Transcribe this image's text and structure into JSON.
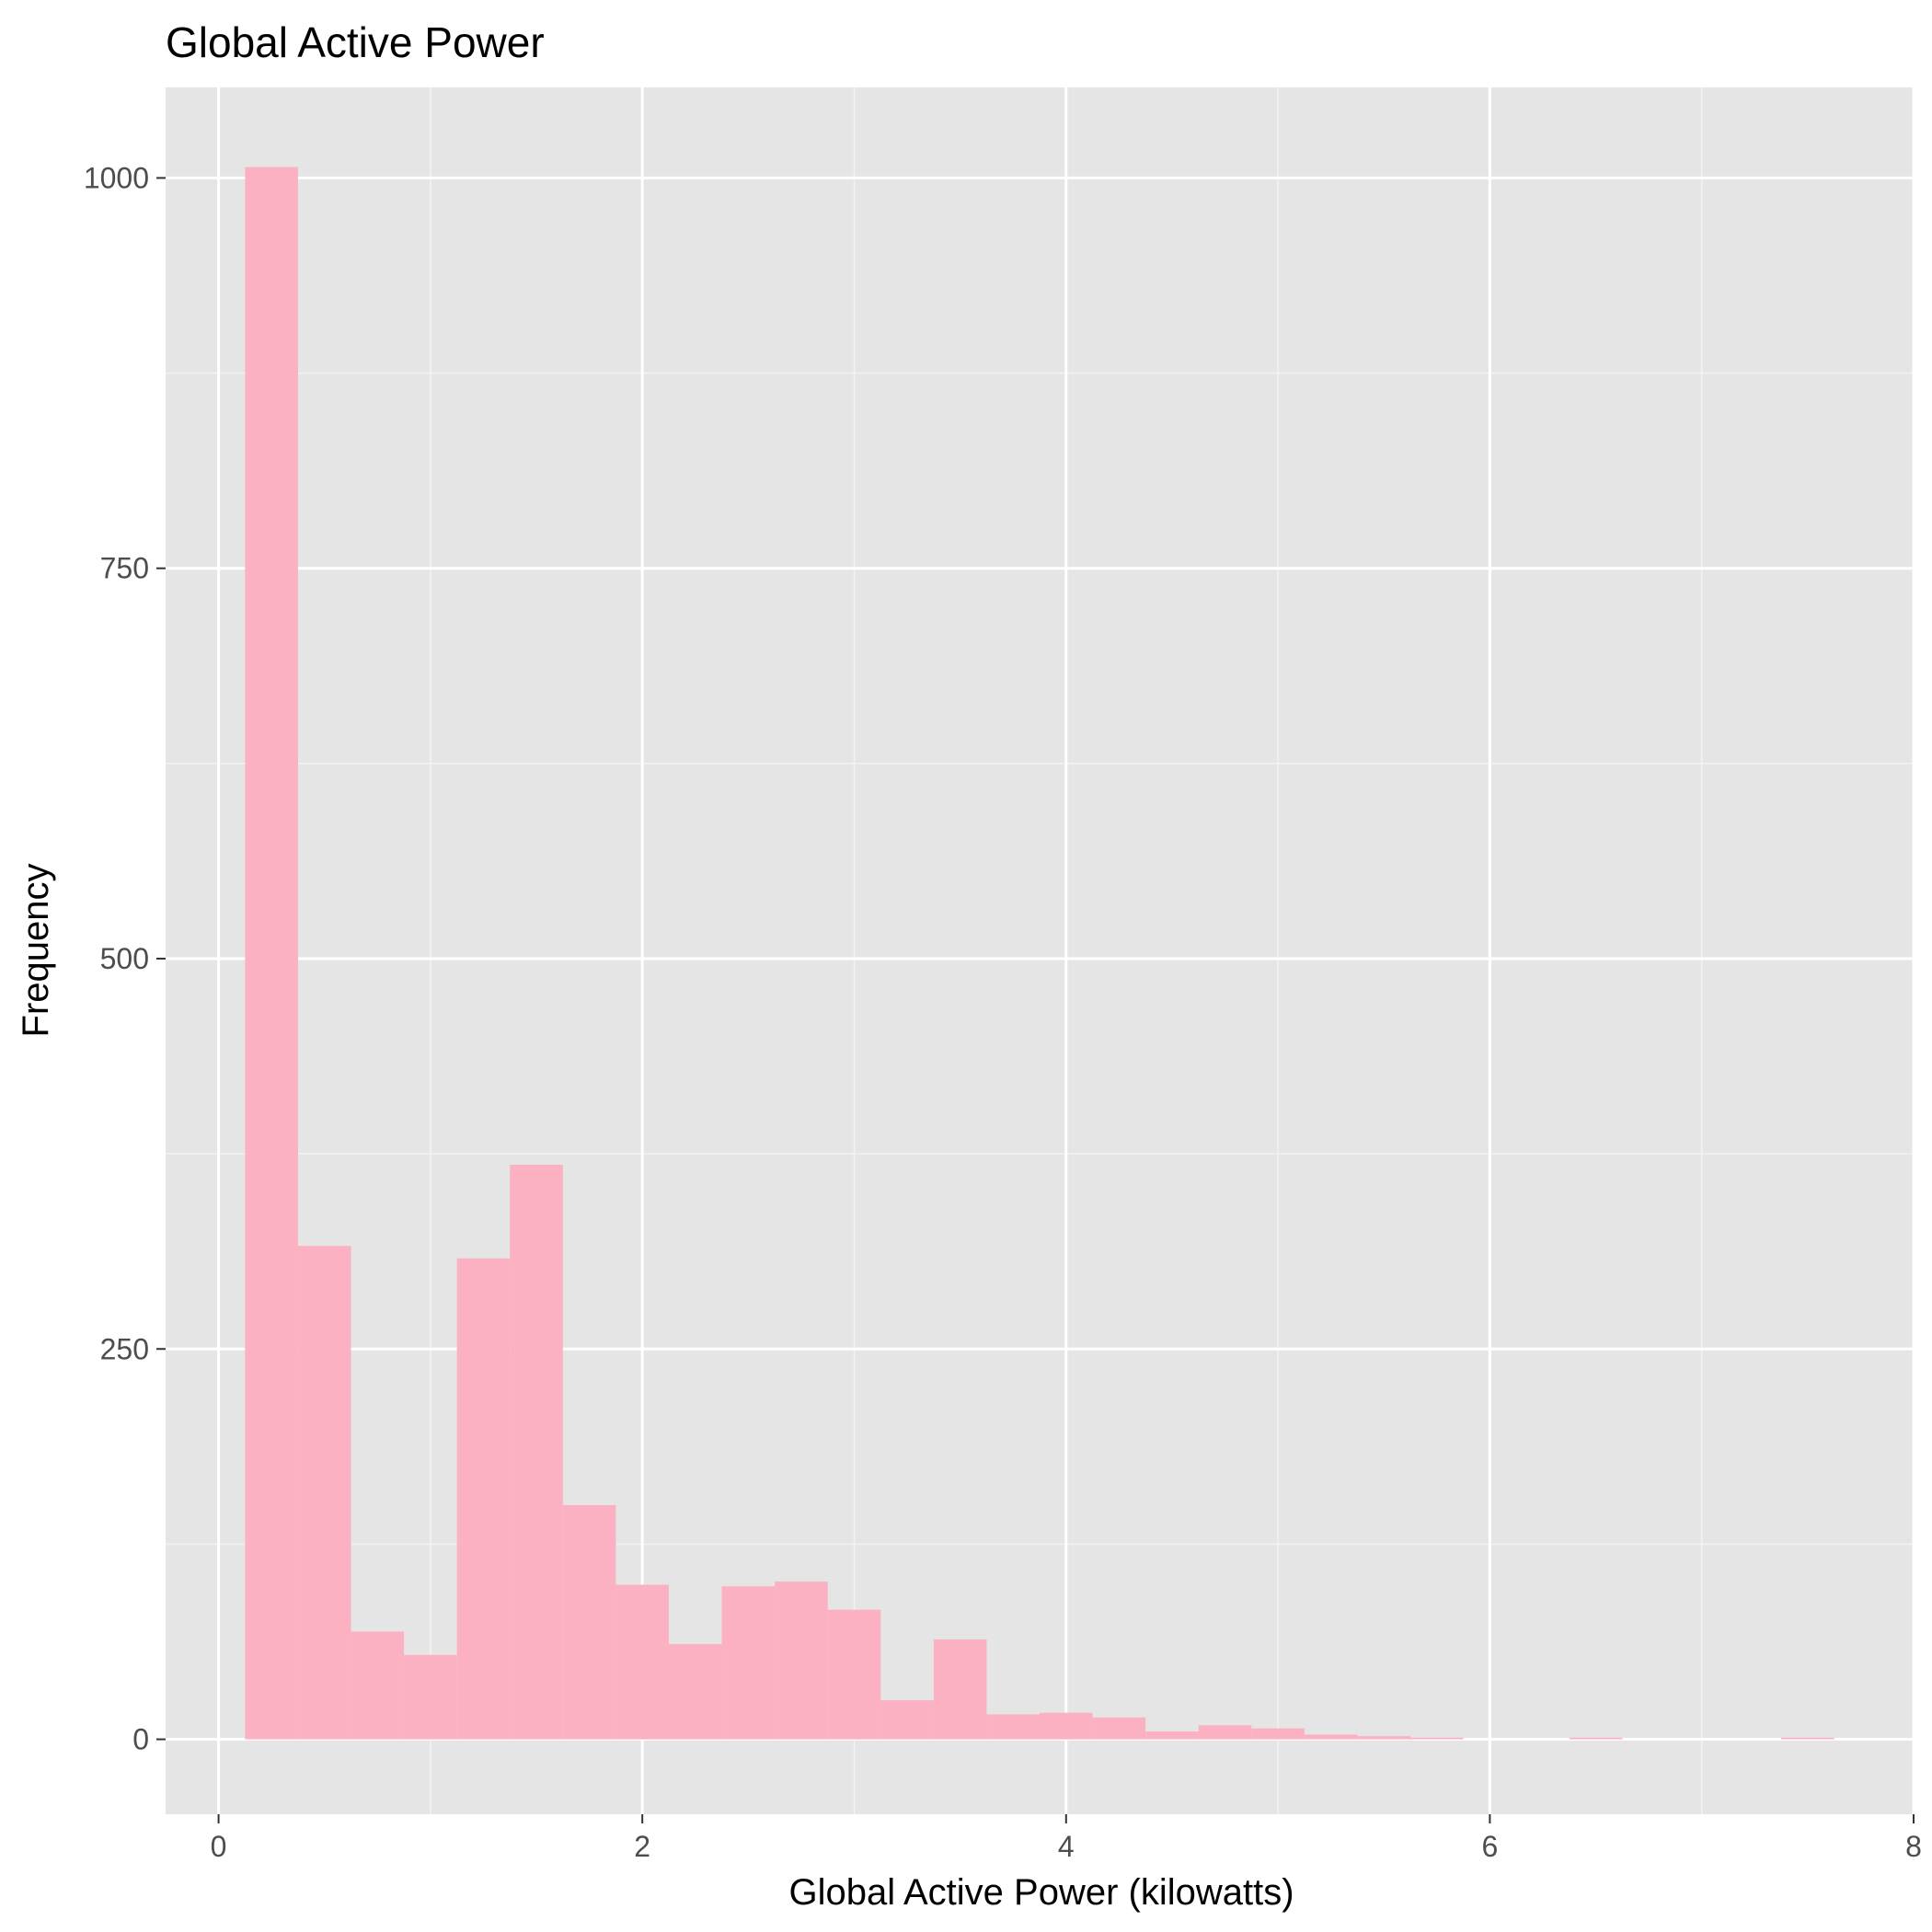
{
  "chart_data": {
    "type": "bar",
    "title": "Global Active Power",
    "xlabel": "Global Active Power (kilowatts)",
    "ylabel": "Frequency",
    "xlim": [
      -0.25,
      8.0
    ],
    "ylim": [
      -48,
      1058
    ],
    "x_ticks": [
      0,
      2,
      4,
      6,
      8
    ],
    "y_ticks": [
      0,
      250,
      500,
      750,
      1000
    ],
    "x_minor": [
      1,
      3,
      5,
      7
    ],
    "y_minor": [
      125,
      375,
      625,
      875
    ],
    "bin_width": 0.25,
    "bins": [
      {
        "x0": 0.125,
        "x1": 0.375,
        "count": 1007
      },
      {
        "x0": 0.375,
        "x1": 0.625,
        "count": 316
      },
      {
        "x0": 0.625,
        "x1": 0.875,
        "count": 69
      },
      {
        "x0": 0.875,
        "x1": 1.125,
        "count": 54
      },
      {
        "x0": 1.125,
        "x1": 1.375,
        "count": 308
      },
      {
        "x0": 1.375,
        "x1": 1.625,
        "count": 368
      },
      {
        "x0": 1.625,
        "x1": 1.875,
        "count": 150
      },
      {
        "x0": 1.875,
        "x1": 2.125,
        "count": 99
      },
      {
        "x0": 2.125,
        "x1": 2.375,
        "count": 61
      },
      {
        "x0": 2.375,
        "x1": 2.625,
        "count": 98
      },
      {
        "x0": 2.625,
        "x1": 2.875,
        "count": 101
      },
      {
        "x0": 2.875,
        "x1": 3.125,
        "count": 83
      },
      {
        "x0": 3.125,
        "x1": 3.375,
        "count": 25
      },
      {
        "x0": 3.375,
        "x1": 3.625,
        "count": 64
      },
      {
        "x0": 3.625,
        "x1": 3.875,
        "count": 16
      },
      {
        "x0": 3.875,
        "x1": 4.125,
        "count": 17
      },
      {
        "x0": 4.125,
        "x1": 4.375,
        "count": 14
      },
      {
        "x0": 4.375,
        "x1": 4.625,
        "count": 5
      },
      {
        "x0": 4.625,
        "x1": 4.875,
        "count": 9
      },
      {
        "x0": 4.875,
        "x1": 5.125,
        "count": 7
      },
      {
        "x0": 5.125,
        "x1": 5.375,
        "count": 3
      },
      {
        "x0": 5.375,
        "x1": 5.625,
        "count": 2
      },
      {
        "x0": 5.625,
        "x1": 5.875,
        "count": 1
      },
      {
        "x0": 5.875,
        "x1": 6.125,
        "count": 0
      },
      {
        "x0": 6.125,
        "x1": 6.375,
        "count": 0
      },
      {
        "x0": 6.375,
        "x1": 6.625,
        "count": 1
      },
      {
        "x0": 6.625,
        "x1": 6.875,
        "count": 0
      },
      {
        "x0": 6.875,
        "x1": 7.125,
        "count": 0
      },
      {
        "x0": 7.125,
        "x1": 7.375,
        "count": 0
      },
      {
        "x0": 7.375,
        "x1": 7.625,
        "count": 1
      }
    ],
    "grid": true,
    "colors": {
      "bar_fill": "#FBB1C2",
      "panel_bg": "#E5E5E5",
      "grid_major": "#FFFFFF",
      "grid_minor": "#F2F2F2",
      "tick_text": "#4D4D4D",
      "tick_mark": "#333333",
      "text": "#000000"
    }
  }
}
